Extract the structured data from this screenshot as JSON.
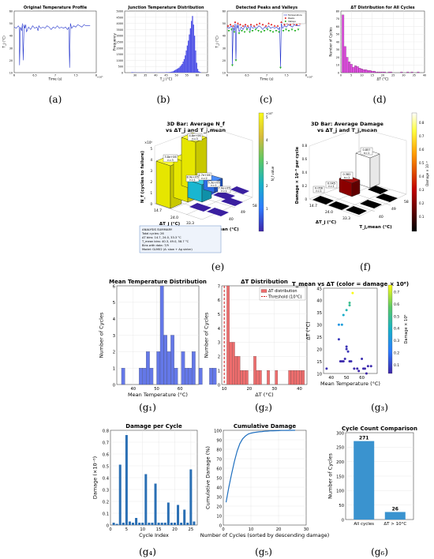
{
  "chart_data": [
    {
      "id": "a",
      "type": "line",
      "title": "Original Temperature Profile",
      "xlabel": "Time (s)",
      "ylabel": "T_j (°C)",
      "xlim": [
        6,
        8
      ],
      "ylim": [
        10,
        60
      ],
      "x_ticks": [
        "6",
        "6.5",
        "7",
        "7.5",
        "8"
      ],
      "x_exponent": "×10⁵",
      "y_ticks": [
        "10",
        "20",
        "30",
        "40",
        "50",
        "60"
      ],
      "series": [
        {
          "color": "#2233cc",
          "x": [
            6.0,
            6.05,
            6.1,
            6.12,
            6.13,
            6.15,
            6.18,
            6.2,
            6.22,
            6.24,
            6.26,
            6.28,
            6.3,
            6.35,
            6.4,
            6.45,
            6.5,
            6.55,
            6.58,
            6.6,
            6.62,
            6.65,
            6.7,
            6.75,
            6.8,
            6.85,
            6.9,
            6.95,
            7.0,
            7.05,
            7.1,
            7.15,
            7.2,
            7.25,
            7.3,
            7.33,
            7.35,
            7.37,
            7.4,
            7.45,
            7.5,
            7.55,
            7.6,
            7.65,
            7.7,
            7.75,
            7.8,
            7.85
          ],
          "y": [
            47,
            46,
            48,
            47,
            16,
            47,
            44,
            50,
            20,
            49,
            46,
            49,
            43,
            47,
            45,
            48,
            46,
            47,
            44,
            48,
            47,
            46,
            47,
            46,
            48,
            47,
            45,
            47,
            46,
            48,
            46,
            47,
            46,
            47,
            45,
            47,
            14,
            50,
            46,
            48,
            47,
            49,
            48,
            47,
            49,
            48,
            48,
            48
          ]
        }
      ]
    },
    {
      "id": "b",
      "type": "bar",
      "title": "Junction Temperature Distribution",
      "xlabel": "T_j (°C)",
      "ylabel": "Frequency",
      "xlim": [
        25,
        65
      ],
      "ylim": [
        0,
        5000
      ],
      "x_ticks": [
        "30",
        "35",
        "40",
        "45",
        "50",
        "55",
        "60",
        "65"
      ],
      "y_ticks": [
        "0",
        "500",
        "1000",
        "1500",
        "2000",
        "2500",
        "3000",
        "3500",
        "4000",
        "4500",
        "5000"
      ],
      "bins_start": 28,
      "bin_width": 0.5,
      "values": [
        30,
        40,
        25,
        20,
        15,
        20,
        10,
        15,
        20,
        10,
        15,
        10,
        15,
        10,
        10,
        10,
        15,
        10,
        10,
        10,
        15,
        10,
        20,
        15,
        10,
        10,
        15,
        20,
        25,
        20,
        30,
        20,
        25,
        30,
        40,
        35,
        40,
        50,
        60,
        80,
        100,
        150,
        200,
        250,
        300,
        350,
        400,
        500,
        600,
        700,
        900,
        1100,
        1400,
        1800,
        2200,
        2600,
        3100,
        3600,
        4200,
        4600,
        3900,
        3000,
        1800,
        800,
        300,
        120,
        60,
        30
      ]
    },
    {
      "id": "c",
      "type": "line",
      "title": "Detected Peaks and Valleys",
      "xlabel": "Time (s)",
      "ylabel": "T_j (°C)",
      "xlim": [
        6,
        8
      ],
      "ylim": [
        10,
        60
      ],
      "x_ticks": [
        "6",
        "6.5",
        "7",
        "7.5",
        "8"
      ],
      "x_exponent": "×10⁵",
      "y_ticks": [
        "10",
        "20",
        "30",
        "40",
        "50",
        "60"
      ],
      "legend": [
        "Temperature",
        "Peaks",
        "Valleys"
      ],
      "legend_colors": [
        "#2233cc",
        "#e02020",
        "#20b020"
      ],
      "series": [
        {
          "color": "#2233cc",
          "x": [
            6.0,
            6.05,
            6.1,
            6.12,
            6.13,
            6.15,
            6.18,
            6.2,
            6.22,
            6.24,
            6.26,
            6.28,
            6.3,
            6.35,
            6.4,
            6.45,
            6.5,
            6.55,
            6.58,
            6.6,
            6.62,
            6.65,
            6.7,
            6.75,
            6.8,
            6.85,
            6.9,
            6.95,
            7.0,
            7.05,
            7.1,
            7.15,
            7.2,
            7.25,
            7.3,
            7.33,
            7.35,
            7.37,
            7.4,
            7.45,
            7.5,
            7.55,
            7.6,
            7.65,
            7.7,
            7.75,
            7.8,
            7.85
          ],
          "y": [
            47,
            46,
            48,
            47,
            16,
            47,
            44,
            50,
            20,
            49,
            46,
            49,
            43,
            47,
            45,
            48,
            46,
            47,
            44,
            48,
            47,
            46,
            47,
            46,
            48,
            47,
            45,
            47,
            46,
            48,
            46,
            47,
            46,
            47,
            45,
            47,
            14,
            50,
            46,
            48,
            47,
            49,
            48,
            47,
            49,
            48,
            48,
            48
          ]
        }
      ],
      "peaks_x": [
        6.02,
        6.08,
        6.15,
        6.2,
        6.27,
        6.33,
        6.4,
        6.46,
        6.52,
        6.6,
        6.68,
        6.75,
        6.82,
        6.9,
        6.98,
        7.05,
        7.12,
        7.2,
        7.28,
        7.37,
        7.45,
        7.52,
        7.6,
        7.68,
        7.76,
        7.84
      ],
      "peaks_y": [
        48,
        49,
        48,
        51,
        50,
        49,
        48,
        49,
        48,
        49,
        48,
        49,
        50,
        49,
        48,
        50,
        49,
        48,
        48,
        51,
        49,
        50,
        49,
        50,
        49,
        50
      ],
      "valleys_x": [
        6.04,
        6.11,
        6.13,
        6.18,
        6.22,
        6.3,
        6.37,
        6.44,
        6.5,
        6.57,
        6.64,
        6.72,
        6.79,
        6.86,
        6.94,
        7.02,
        7.09,
        7.16,
        7.24,
        7.31,
        7.35,
        7.42,
        7.49,
        7.56,
        7.64,
        7.72,
        7.8
      ],
      "valleys_y": [
        44,
        45,
        16,
        43,
        20,
        42,
        44,
        43,
        45,
        43,
        44,
        45,
        44,
        43,
        44,
        45,
        44,
        43,
        44,
        43,
        14,
        44,
        45,
        44,
        45,
        44,
        45
      ]
    },
    {
      "id": "d",
      "type": "bar",
      "title": "ΔT Distribution for All Cycles",
      "xlabel": "ΔT (°C)",
      "ylabel": "Number of Cycles",
      "xlim": [
        0,
        40
      ],
      "ylim": [
        0,
        80
      ],
      "x_ticks": [
        "0",
        "5",
        "10",
        "15",
        "20",
        "25",
        "30",
        "35",
        "40"
      ],
      "y_ticks": [
        "0",
        "10",
        "20",
        "30",
        "40",
        "50",
        "60",
        "70",
        "80"
      ],
      "bins_start": 0.5,
      "bin_width": 1,
      "values": [
        75,
        34,
        20,
        14,
        11,
        7,
        9,
        8,
        6,
        5,
        4,
        4,
        3,
        3,
        2,
        2,
        1,
        1,
        1,
        1,
        1,
        0,
        1,
        1,
        0,
        0,
        0,
        0,
        1,
        0,
        0,
        1,
        0,
        1,
        0,
        0,
        1,
        0,
        0
      ],
      "color": "#e04ce0"
    },
    {
      "id": "e",
      "type": "bar3d",
      "title_line1": "3D Bar: Average N_f",
      "title_line2": "vs ΔT_j and T_j,mean",
      "zlabel": "N_f (cycles to failure)",
      "z_exponent": "×10⁶",
      "xlabel": "ΔT_j (°C)",
      "ylabel": "T_j,mean (°C)",
      "dt_ticks": [
        "14.7",
        "24.0",
        "33.3"
      ],
      "tm_ticks": [
        "40",
        "49",
        "58"
      ],
      "z_ticks": [
        "0",
        "1",
        "2",
        "3",
        "4",
        "5"
      ],
      "colorbar_label": "N_f value",
      "colorbar_ticks": [
        "1",
        "2",
        "3",
        "4",
        "5"
      ],
      "bars": [
        {
          "label": "4.8e+06",
          "n": "n=3",
          "value": 4.8
        },
        {
          "label": "3.8e+06",
          "n": "n=3",
          "value": 3.8
        },
        {
          "label": "1.7e+06",
          "n": "n=2",
          "value": 1.7
        },
        {
          "label": "8.9e+05",
          "n": "n=1",
          "value": 0.89
        },
        {
          "label": "5.3e+05",
          "n": "n=1",
          "value": 0.53
        },
        {
          "label": "7.0e+05",
          "n": "n=1",
          "value": 0.7
        }
      ],
      "summary": {
        "title": "ANALYSIS SUMMARY",
        "lines": [
          "Total cycles: 26",
          "ΔT bins: 14.7, 24.0, 33.3 °C",
          "T_mean bins: 40.3, 49.0, 58.7 °C",
          "Bins with data: 7/9",
          "Model: GLM02 (A: slow + Ag sinter)"
        ]
      }
    },
    {
      "id": "f",
      "type": "bar3d",
      "title_line1": "3D Bar: Average Damage",
      "title_line2": "vs ΔT_j and T_j,mean",
      "zlabel": "Damage × 10⁻⁶ per cycle",
      "xlabel": "ΔT_j (°C)",
      "ylabel": "T_j,mean (°C)",
      "dt_ticks": [
        "14.7",
        "24.0",
        "33.3"
      ],
      "tm_ticks": [
        "40",
        "49",
        "58"
      ],
      "z_ticks": [
        "0",
        "0.2",
        "0.4",
        "0.6",
        "0.8"
      ],
      "colorbar_label": "Damage × 10⁻⁶",
      "colorbar_ticks": [
        "0.1",
        "0.2",
        "0.3",
        "0.4",
        "0.5",
        "0.6",
        "0.7",
        "0.8"
      ],
      "bars": [
        {
          "label": "0.857",
          "n": "n=1",
          "value": 0.857
        },
        {
          "label": "0.382",
          "n": "n=1",
          "value": 0.382
        },
        {
          "label": "0.056",
          "n": "n=1",
          "value": 0.056
        },
        {
          "label": "0.045",
          "n": "n=1",
          "value": 0.045
        }
      ]
    },
    {
      "id": "g1",
      "type": "bar",
      "title": "Mean Temperature Distribution",
      "xlabel": "Mean Temperature (°C)",
      "ylabel": "Number of Cycles",
      "xlim": [
        33,
        68
      ],
      "ylim": [
        0,
        6
      ],
      "x_ticks": [
        "40",
        "50",
        "60"
      ],
      "y_ticks": [
        "0",
        "1",
        "2",
        "3",
        "4",
        "5",
        "6"
      ],
      "bins_start": 35,
      "bin_width": 1.5,
      "values": [
        1,
        0,
        0,
        0,
        0,
        1,
        1,
        2,
        1,
        0,
        2,
        6,
        3,
        2,
        3,
        1,
        0,
        2,
        1,
        1,
        2,
        0,
        1,
        0,
        0,
        1,
        1,
        0,
        0,
        1
      ],
      "color": "#6478e8"
    },
    {
      "id": "g2",
      "type": "bar",
      "title": "ΔT Distribution",
      "xlabel": "ΔT (°C)",
      "ylabel": "Number of Cycles",
      "xlim": [
        9,
        43
      ],
      "ylim": [
        0,
        7
      ],
      "x_ticks": [
        "10",
        "20",
        "30",
        "40"
      ],
      "y_ticks": [
        "0",
        "1",
        "2",
        "3",
        "4",
        "5",
        "6",
        "7"
      ],
      "bins_start": 11,
      "bin_width": 1.07,
      "values": [
        7,
        3,
        3,
        2,
        2,
        1,
        1,
        1,
        0,
        0,
        2,
        1,
        1,
        0,
        0,
        1,
        0,
        0,
        1,
        0,
        0,
        0,
        0,
        1,
        1,
        1,
        1,
        1,
        1
      ],
      "color": "#ee6d6d",
      "threshold": 10,
      "legend": [
        "ΔT distribution",
        "Threshold (10°C)"
      ]
    },
    {
      "id": "g3",
      "type": "scatter",
      "title": "T_mean vs ΔT (color = damage × 10⁶)",
      "xlabel": "Mean Temperature (°C)",
      "ylabel": "ΔT (°C)",
      "xlim": [
        35,
        70
      ],
      "ylim": [
        10,
        45
      ],
      "x_ticks": [
        "40",
        "50",
        "60"
      ],
      "y_ticks": [
        "10",
        "15",
        "20",
        "25",
        "30",
        "35",
        "40",
        "45"
      ],
      "colorbar_label": "Damage × 10⁶",
      "colorbar_ticks": [
        "0.1",
        "0.2",
        "0.3",
        "0.4",
        "0.5",
        "0.6",
        "0.7"
      ],
      "x": [
        37,
        45,
        46,
        47,
        48,
        49,
        50,
        50,
        51,
        52,
        53,
        45,
        47,
        48,
        50,
        52,
        52,
        55,
        57,
        58,
        60,
        61,
        62,
        63,
        64,
        66,
        54
      ],
      "y": [
        12,
        24,
        15,
        15,
        15,
        16,
        20,
        21,
        19,
        15,
        15,
        30,
        30,
        34,
        36,
        38,
        39,
        12,
        12,
        11,
        16,
        12,
        12,
        10,
        13,
        13,
        43
      ],
      "damage": [
        0.05,
        0.07,
        0.04,
        0.04,
        0.04,
        0.05,
        0.06,
        0.06,
        0.06,
        0.05,
        0.05,
        0.3,
        0.33,
        0.38,
        0.43,
        0.48,
        0.5,
        0.04,
        0.04,
        0.03,
        0.05,
        0.04,
        0.04,
        0.03,
        0.04,
        0.04,
        0.76
      ]
    },
    {
      "id": "g4",
      "type": "bar",
      "title": "Damage per Cycle",
      "xlabel": "Cycle Index",
      "ylabel": "Damage (×10⁻⁶)",
      "xlim": [
        0,
        27
      ],
      "ylim": [
        0,
        0.8
      ],
      "x_ticks": [
        "0",
        "5",
        "10",
        "15",
        "20",
        "25"
      ],
      "y_ticks": [
        "0",
        "0.1",
        "0.2",
        "0.3",
        "0.4",
        "0.5",
        "0.6",
        "0.7",
        "0.8"
      ],
      "values": [
        0.02,
        0.01,
        0.51,
        0.02,
        0.76,
        0.03,
        0.02,
        0.06,
        0.02,
        0.02,
        0.43,
        0.02,
        0.02,
        0.35,
        0.02,
        0.02,
        0.02,
        0.19,
        0.02,
        0.02,
        0.17,
        0.02,
        0.13,
        0.02,
        0.47,
        0.03
      ],
      "color": "#2a6fb4"
    },
    {
      "id": "g5",
      "type": "line",
      "title": "Cumulative Damage",
      "xlabel": "Number of Cycles (sorted by descending damage)",
      "ylabel": "Cumulative Damage (%)",
      "xlim": [
        0,
        30
      ],
      "ylim": [
        0,
        100
      ],
      "x_ticks": [
        "0",
        "10",
        "20",
        "30"
      ],
      "y_ticks": [
        "0",
        "10",
        "20",
        "30",
        "40",
        "50",
        "60",
        "70",
        "80",
        "90",
        "100"
      ],
      "x": [
        1,
        2,
        3,
        4,
        5,
        6,
        7,
        8,
        9,
        10,
        11,
        12,
        13,
        14,
        15,
        16,
        17,
        18,
        19,
        20,
        21,
        22,
        23,
        24,
        25,
        26
      ],
      "y": [
        24,
        40,
        54,
        67,
        78,
        86,
        91,
        94,
        96,
        97,
        97.6,
        98,
        98.4,
        98.7,
        99,
        99.2,
        99.4,
        99.5,
        99.6,
        99.7,
        99.8,
        99.85,
        99.9,
        99.95,
        100,
        100
      ],
      "color": "#1f6fbf"
    },
    {
      "id": "g6",
      "type": "bar",
      "title": "Cycle Count Comparison",
      "xlabel": "",
      "ylabel": "Number of Cycles",
      "ylim": [
        0,
        300
      ],
      "y_ticks": [
        "0",
        "50",
        "100",
        "150",
        "200",
        "250",
        "300"
      ],
      "categories": [
        "All cycles",
        "ΔT > 10°C"
      ],
      "values": [
        271,
        26
      ],
      "labels": [
        "271",
        "26"
      ],
      "color": "#3a93cf"
    }
  ],
  "captions": [
    "(a)",
    "(b)",
    "(c)",
    "(d)",
    "(e)",
    "(f)",
    "(g₁)",
    "(g₂)",
    "(g₃)",
    "(g₄)",
    "(g₅)",
    "(g₆)"
  ]
}
